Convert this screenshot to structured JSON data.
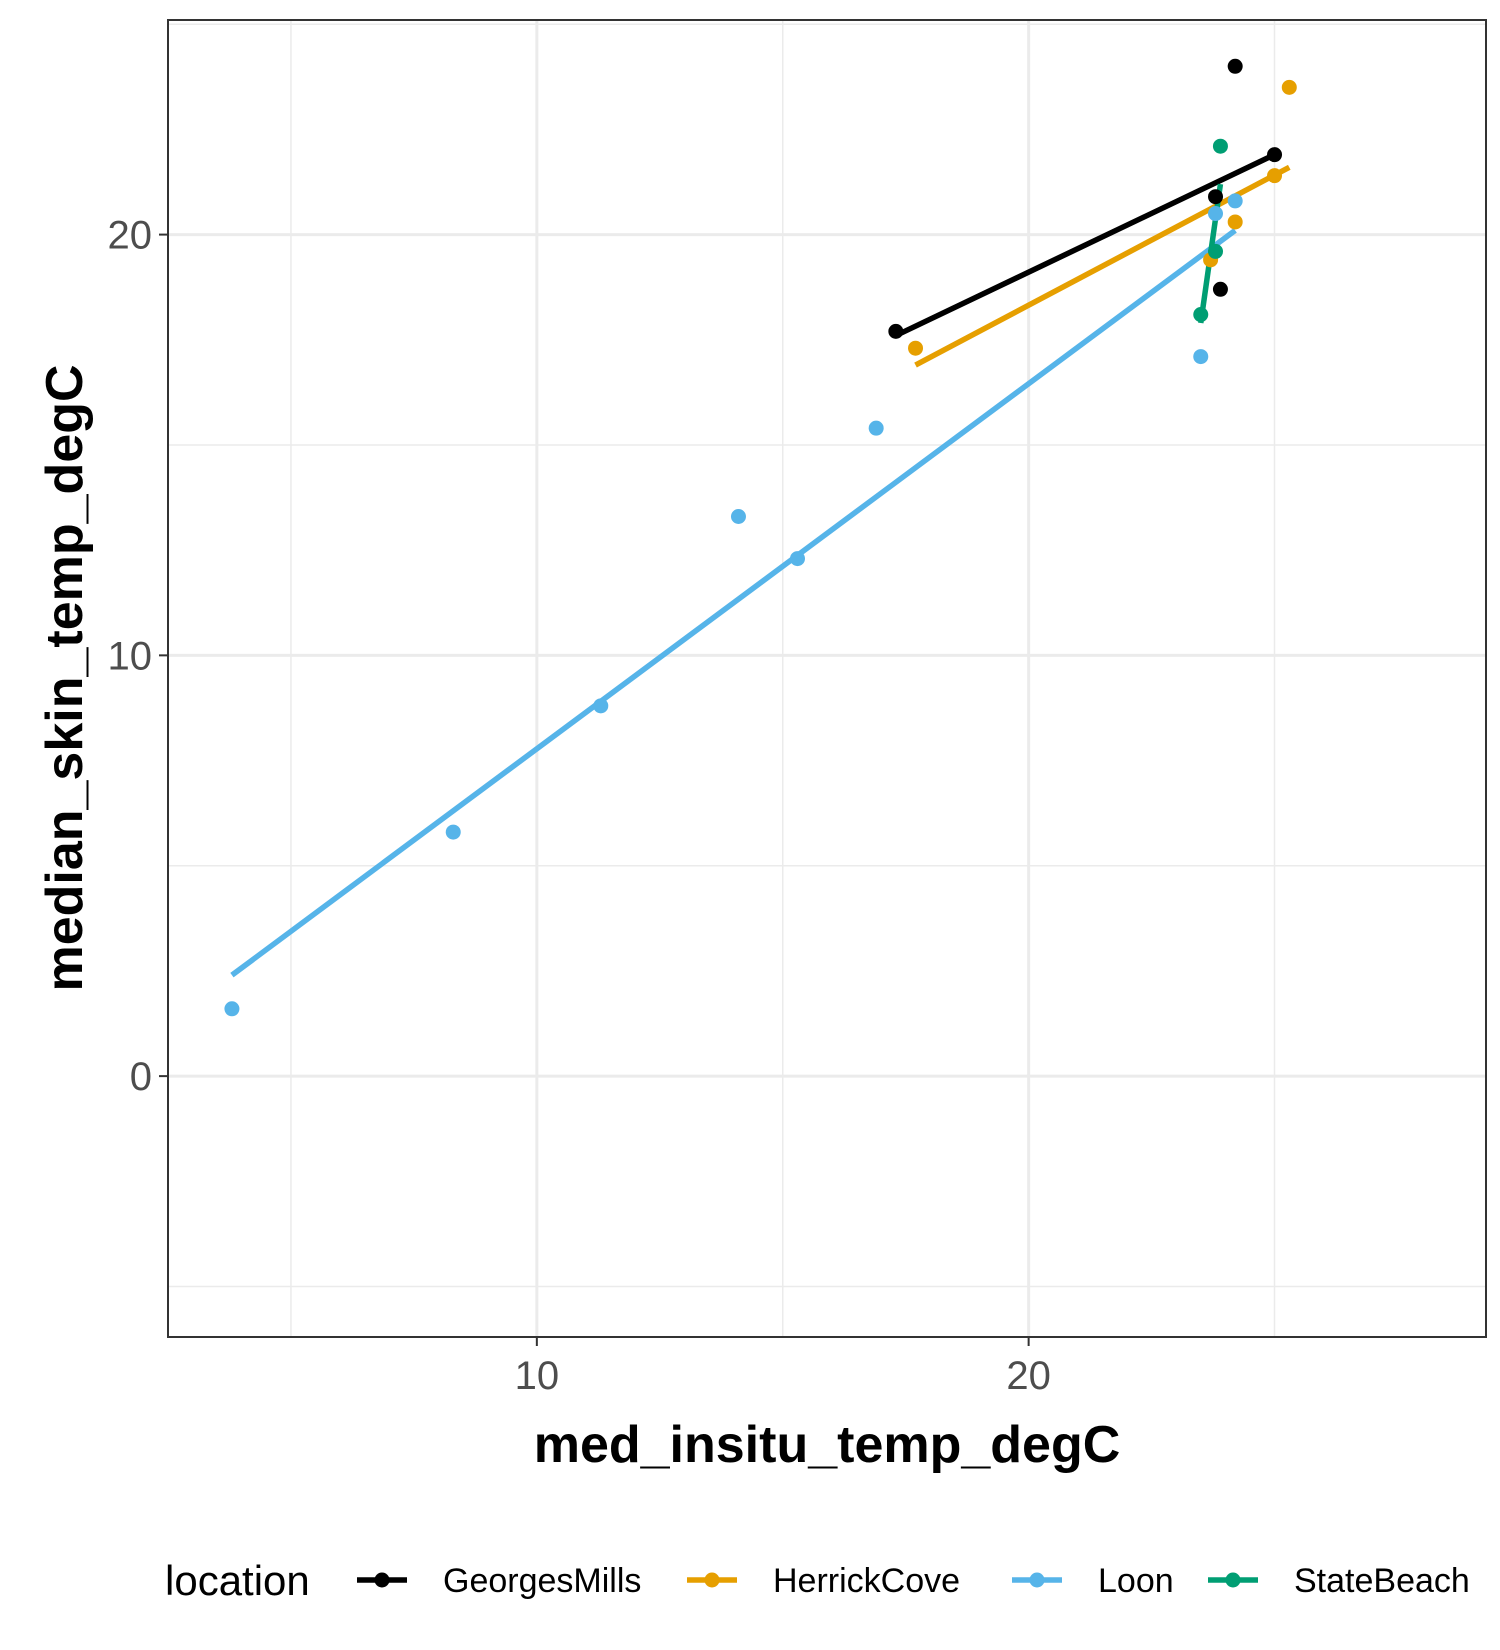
{
  "chart_data": {
    "type": "scatter",
    "xlabel": "med_insitu_temp_degC",
    "ylabel": "median_skin_temp_degC",
    "xlim": [
      2.5,
      29.3
    ],
    "ylim": [
      -6.2,
      25.1
    ],
    "x_ticks": [
      10,
      20
    ],
    "x_tick_labels": [
      "10",
      "20"
    ],
    "y_ticks": [
      0,
      10,
      20
    ],
    "y_tick_labels": [
      "0",
      "10",
      "20"
    ],
    "grid": true,
    "legend": {
      "title": "location",
      "placement": "bottom"
    },
    "series": [
      {
        "name": "GeorgesMills",
        "color": "#000000",
        "points": [
          [
            17.3,
            17.7
          ],
          [
            23.9,
            18.7
          ],
          [
            24.2,
            24.0
          ],
          [
            25.0,
            21.9
          ],
          [
            23.8,
            20.9
          ]
        ],
        "fit": [
          [
            17.3,
            17.6
          ],
          [
            25.0,
            21.9
          ]
        ]
      },
      {
        "name": "HerrickCove",
        "color": "#E69F00",
        "points": [
          [
            17.7,
            17.3
          ],
          [
            24.2,
            20.3
          ],
          [
            25.0,
            21.4
          ],
          [
            25.3,
            23.5
          ],
          [
            23.7,
            19.4
          ]
        ],
        "fit": [
          [
            17.7,
            16.9
          ],
          [
            25.3,
            21.6
          ]
        ]
      },
      {
        "name": "Loon",
        "color": "#56B4E9",
        "points": [
          [
            3.8,
            1.6
          ],
          [
            8.3,
            5.8
          ],
          [
            11.3,
            8.8
          ],
          [
            14.1,
            13.3
          ],
          [
            15.3,
            12.3
          ],
          [
            16.9,
            15.4
          ],
          [
            23.5,
            17.1
          ],
          [
            24.2,
            20.8
          ],
          [
            23.8,
            20.5
          ]
        ],
        "fit": [
          [
            3.8,
            2.4
          ],
          [
            24.2,
            20.1
          ]
        ]
      },
      {
        "name": "StateBeach",
        "color": "#009E73",
        "points": [
          [
            23.5,
            18.1
          ],
          [
            23.9,
            22.1
          ],
          [
            23.8,
            19.6
          ]
        ],
        "fit": [
          [
            23.5,
            17.9
          ],
          [
            23.9,
            21.2
          ]
        ]
      }
    ]
  }
}
